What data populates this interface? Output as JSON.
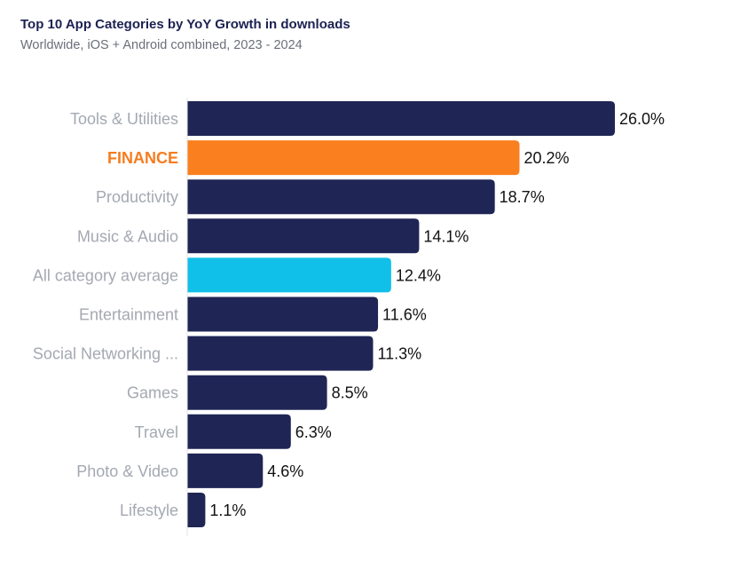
{
  "chart_data": {
    "type": "bar",
    "orientation": "horizontal",
    "title": "Top 10 App Categories by YoY Growth in downloads",
    "subtitle": "Worldwide, iOS + Android combined, 2023 - 2024",
    "xlabel": "",
    "ylabel": "",
    "xlim": [
      0,
      26
    ],
    "grid": false,
    "legend": "none",
    "value_suffix": "%",
    "colors": {
      "default": "#1f2655",
      "highlight": "#fa7f1e",
      "average": "#11c0e8",
      "label_default": "#a4a8b2",
      "label_highlight": "#f57c1f",
      "value_text": "#111111",
      "axis": "#e6e6e6"
    },
    "categories": [
      "Tools & Utilities",
      "FINANCE",
      "Productivity",
      "Music & Audio",
      "All category average",
      "Entertainment",
      "Social Networking ...",
      "Games",
      "Travel",
      "Photo & Video",
      "Lifestyle"
    ],
    "values": [
      26.0,
      20.2,
      18.7,
      14.1,
      12.4,
      11.6,
      11.3,
      8.5,
      6.3,
      4.6,
      1.1
    ],
    "value_labels": [
      "26.0%",
      "20.2%",
      "18.7%",
      "14.1%",
      "12.4%",
      "11.6%",
      "11.3%",
      "8.5%",
      "6.3%",
      "4.6%",
      "1.1%"
    ],
    "highlight": [
      "FINANCE"
    ],
    "average": [
      "All category average"
    ]
  }
}
